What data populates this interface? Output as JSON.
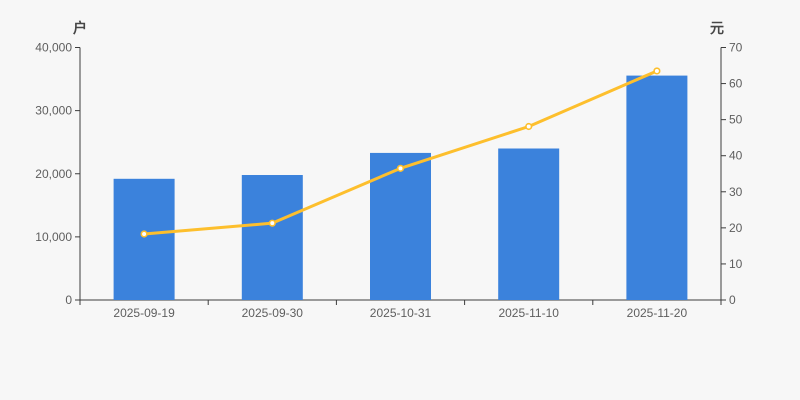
{
  "chart_data": {
    "type": "bar+line",
    "categories": [
      "2025-09-19",
      "2025-09-30",
      "2025-10-31",
      "2025-11-10",
      "2025-11-20"
    ],
    "series": [
      {
        "id": "bar-series",
        "type": "bar",
        "axis": "left",
        "unit": "户",
        "values": [
          19200,
          19800,
          23300,
          24000,
          35550
        ],
        "color": "#3b82dc"
      },
      {
        "id": "line-series",
        "type": "line",
        "axis": "right",
        "unit": "元",
        "values": [
          18.3,
          21.3,
          36.5,
          48.1,
          63.5
        ],
        "color": "#fdbf2d",
        "marker_fill": "#ffffff"
      }
    ],
    "title": "",
    "xlabel": "",
    "left_axis": {
      "label": "户",
      "min": 0,
      "max": 40000,
      "tick_step": 10000,
      "tick_labels": [
        "0",
        "10,000",
        "20,000",
        "30,000",
        "40,000"
      ]
    },
    "right_axis": {
      "label": "元",
      "min": 0,
      "max": 70,
      "tick_step": 10,
      "tick_labels": [
        "0",
        "10",
        "20",
        "30",
        "40",
        "50",
        "60",
        "70"
      ]
    },
    "grid": false,
    "legend": "none",
    "colors": {
      "background": "#f7f7f7",
      "axis_line": "#3c3c3c",
      "tick_text": "#5e5e5e",
      "bar": "#3b82dc",
      "line": "#fdbf2d"
    }
  }
}
